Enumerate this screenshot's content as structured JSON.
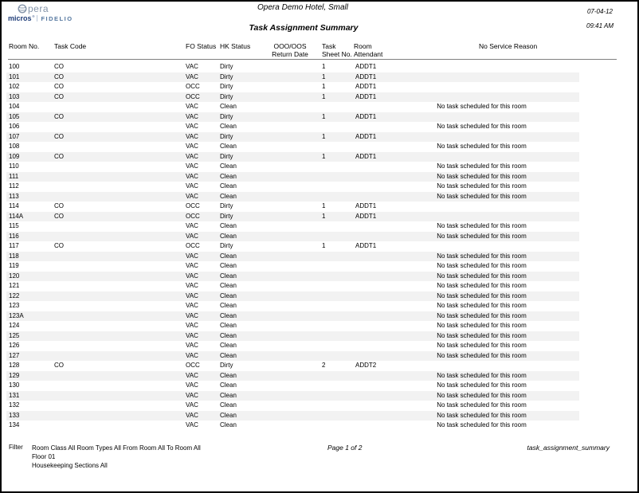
{
  "logo": {
    "opera_text": "pera",
    "micros": "micros",
    "registered": "®",
    "fidelio": "FIDELIO"
  },
  "header": {
    "title": "Opera Demo Hotel, Small",
    "subtitle": "Task Assignment Summary",
    "date": "07-04-12",
    "time": "09:41 AM"
  },
  "table": {
    "headers": {
      "room_no": "Room No.",
      "task_code": "Task Code",
      "fo_status": "FO Status",
      "hk_status": "HK Status",
      "ooo_line1": "OOO/OOS",
      "ooo_line2": "Return Date",
      "task_line1": "Task",
      "task_line2": "Sheet No.",
      "room_line1": "Room",
      "room_line2": "Attendant",
      "no_service": "No Service Reason"
    },
    "rows": [
      {
        "room": "100",
        "task_code": "CO",
        "fo_status": "VAC",
        "hk_status": "Dirty",
        "return_date": "",
        "sheet_no": "1",
        "attendant": "ADDT1",
        "reason": ""
      },
      {
        "room": "101",
        "task_code": "CO",
        "fo_status": "VAC",
        "hk_status": "Dirty",
        "return_date": "",
        "sheet_no": "1",
        "attendant": "ADDT1",
        "reason": ""
      },
      {
        "room": "102",
        "task_code": "CO",
        "fo_status": "OCC",
        "hk_status": "Dirty",
        "return_date": "",
        "sheet_no": "1",
        "attendant": "ADDT1",
        "reason": ""
      },
      {
        "room": "103",
        "task_code": "CO",
        "fo_status": "OCC",
        "hk_status": "Dirty",
        "return_date": "",
        "sheet_no": "1",
        "attendant": "ADDT1",
        "reason": ""
      },
      {
        "room": "104",
        "task_code": "",
        "fo_status": "VAC",
        "hk_status": "Clean",
        "return_date": "",
        "sheet_no": "",
        "attendant": "",
        "reason": "No task scheduled for this room"
      },
      {
        "room": "105",
        "task_code": "CO",
        "fo_status": "VAC",
        "hk_status": "Dirty",
        "return_date": "",
        "sheet_no": "1",
        "attendant": "ADDT1",
        "reason": ""
      },
      {
        "room": "106",
        "task_code": "",
        "fo_status": "VAC",
        "hk_status": "Clean",
        "return_date": "",
        "sheet_no": "",
        "attendant": "",
        "reason": "No task scheduled for this room"
      },
      {
        "room": "107",
        "task_code": "CO",
        "fo_status": "VAC",
        "hk_status": "Dirty",
        "return_date": "",
        "sheet_no": "1",
        "attendant": "ADDT1",
        "reason": ""
      },
      {
        "room": "108",
        "task_code": "",
        "fo_status": "VAC",
        "hk_status": "Clean",
        "return_date": "",
        "sheet_no": "",
        "attendant": "",
        "reason": "No task scheduled for this room"
      },
      {
        "room": "109",
        "task_code": "CO",
        "fo_status": "VAC",
        "hk_status": "Dirty",
        "return_date": "",
        "sheet_no": "1",
        "attendant": "ADDT1",
        "reason": ""
      },
      {
        "room": "110",
        "task_code": "",
        "fo_status": "VAC",
        "hk_status": "Clean",
        "return_date": "",
        "sheet_no": "",
        "attendant": "",
        "reason": "No task scheduled for this room"
      },
      {
        "room": "111",
        "task_code": "",
        "fo_status": "VAC",
        "hk_status": "Clean",
        "return_date": "",
        "sheet_no": "",
        "attendant": "",
        "reason": "No task scheduled for this room"
      },
      {
        "room": "112",
        "task_code": "",
        "fo_status": "VAC",
        "hk_status": "Clean",
        "return_date": "",
        "sheet_no": "",
        "attendant": "",
        "reason": "No task scheduled for this room"
      },
      {
        "room": "113",
        "task_code": "",
        "fo_status": "VAC",
        "hk_status": "Clean",
        "return_date": "",
        "sheet_no": "",
        "attendant": "",
        "reason": "No task scheduled for this room"
      },
      {
        "room": "114",
        "task_code": "CO",
        "fo_status": "OCC",
        "hk_status": "Dirty",
        "return_date": "",
        "sheet_no": "1",
        "attendant": "ADDT1",
        "reason": ""
      },
      {
        "room": "114A",
        "task_code": "CO",
        "fo_status": "OCC",
        "hk_status": "Dirty",
        "return_date": "",
        "sheet_no": "1",
        "attendant": "ADDT1",
        "reason": ""
      },
      {
        "room": "115",
        "task_code": "",
        "fo_status": "VAC",
        "hk_status": "Clean",
        "return_date": "",
        "sheet_no": "",
        "attendant": "",
        "reason": "No task scheduled for this room"
      },
      {
        "room": "116",
        "task_code": "",
        "fo_status": "VAC",
        "hk_status": "Clean",
        "return_date": "",
        "sheet_no": "",
        "attendant": "",
        "reason": "No task scheduled for this room"
      },
      {
        "room": "117",
        "task_code": "CO",
        "fo_status": "OCC",
        "hk_status": "Dirty",
        "return_date": "",
        "sheet_no": "1",
        "attendant": "ADDT1",
        "reason": ""
      },
      {
        "room": "118",
        "task_code": "",
        "fo_status": "VAC",
        "hk_status": "Clean",
        "return_date": "",
        "sheet_no": "",
        "attendant": "",
        "reason": "No task scheduled for this room"
      },
      {
        "room": "119",
        "task_code": "",
        "fo_status": "VAC",
        "hk_status": "Clean",
        "return_date": "",
        "sheet_no": "",
        "attendant": "",
        "reason": "No task scheduled for this room"
      },
      {
        "room": "120",
        "task_code": "",
        "fo_status": "VAC",
        "hk_status": "Clean",
        "return_date": "",
        "sheet_no": "",
        "attendant": "",
        "reason": "No task scheduled for this room"
      },
      {
        "room": "121",
        "task_code": "",
        "fo_status": "VAC",
        "hk_status": "Clean",
        "return_date": "",
        "sheet_no": "",
        "attendant": "",
        "reason": "No task scheduled for this room"
      },
      {
        "room": "122",
        "task_code": "",
        "fo_status": "VAC",
        "hk_status": "Clean",
        "return_date": "",
        "sheet_no": "",
        "attendant": "",
        "reason": "No task scheduled for this room"
      },
      {
        "room": "123",
        "task_code": "",
        "fo_status": "VAC",
        "hk_status": "Clean",
        "return_date": "",
        "sheet_no": "",
        "attendant": "",
        "reason": "No task scheduled for this room"
      },
      {
        "room": "123A",
        "task_code": "",
        "fo_status": "VAC",
        "hk_status": "Clean",
        "return_date": "",
        "sheet_no": "",
        "attendant": "",
        "reason": "No task scheduled for this room"
      },
      {
        "room": "124",
        "task_code": "",
        "fo_status": "VAC",
        "hk_status": "Clean",
        "return_date": "",
        "sheet_no": "",
        "attendant": "",
        "reason": "No task scheduled for this room"
      },
      {
        "room": "125",
        "task_code": "",
        "fo_status": "VAC",
        "hk_status": "Clean",
        "return_date": "",
        "sheet_no": "",
        "attendant": "",
        "reason": "No task scheduled for this room"
      },
      {
        "room": "126",
        "task_code": "",
        "fo_status": "VAC",
        "hk_status": "Clean",
        "return_date": "",
        "sheet_no": "",
        "attendant": "",
        "reason": "No task scheduled for this room"
      },
      {
        "room": "127",
        "task_code": "",
        "fo_status": "VAC",
        "hk_status": "Clean",
        "return_date": "",
        "sheet_no": "",
        "attendant": "",
        "reason": "No task scheduled for this room"
      },
      {
        "room": "128",
        "task_code": "CO",
        "fo_status": "OCC",
        "hk_status": "Dirty",
        "return_date": "",
        "sheet_no": "2",
        "attendant": "ADDT2",
        "reason": ""
      },
      {
        "room": "129",
        "task_code": "",
        "fo_status": "VAC",
        "hk_status": "Clean",
        "return_date": "",
        "sheet_no": "",
        "attendant": "",
        "reason": "No task scheduled for this room"
      },
      {
        "room": "130",
        "task_code": "",
        "fo_status": "VAC",
        "hk_status": "Clean",
        "return_date": "",
        "sheet_no": "",
        "attendant": "",
        "reason": "No task scheduled for this room"
      },
      {
        "room": "131",
        "task_code": "",
        "fo_status": "VAC",
        "hk_status": "Clean",
        "return_date": "",
        "sheet_no": "",
        "attendant": "",
        "reason": "No task scheduled for this room"
      },
      {
        "room": "132",
        "task_code": "",
        "fo_status": "VAC",
        "hk_status": "Clean",
        "return_date": "",
        "sheet_no": "",
        "attendant": "",
        "reason": "No task scheduled for this room"
      },
      {
        "room": "133",
        "task_code": "",
        "fo_status": "VAC",
        "hk_status": "Clean",
        "return_date": "",
        "sheet_no": "",
        "attendant": "",
        "reason": "No task scheduled for this room"
      },
      {
        "room": "134",
        "task_code": "",
        "fo_status": "VAC",
        "hk_status": "Clean",
        "return_date": "",
        "sheet_no": "",
        "attendant": "",
        "reason": "No task scheduled for this room"
      }
    ]
  },
  "footer": {
    "filter_label": "Filter",
    "filter_line1": "Room Class All   Room Types All From Room All  To Room All",
    "filter_line2": "Floor 01",
    "filter_line3": "Housekeeping Sections All",
    "page": "Page 1 of 2",
    "report_name": "task_assignment_summary"
  },
  "colors": {
    "row_stripe": "#f2f2f2",
    "page_border": "#000000",
    "logo_opera": "#8494a9",
    "logo_micros": "#1e3c78",
    "logo_fidelio": "#54779f"
  }
}
